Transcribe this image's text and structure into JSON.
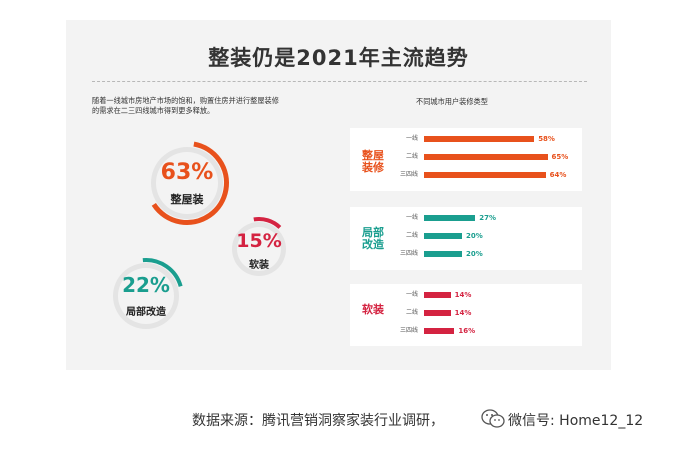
{
  "title": "整装仍是2021年主流趋势",
  "intro": {
    "line1": "随着一线城市房地产市场的饱和，购置住房并进行整屋装修",
    "line2": "的需求在二三四线城市得到更多释放。"
  },
  "donuts": [
    {
      "pct": "63%",
      "label": "整屋装",
      "value": 63,
      "color": "#e8511c"
    },
    {
      "pct": "15%",
      "label": "软装",
      "value": 15,
      "color": "#d42341"
    },
    {
      "pct": "22%",
      "label": "局部改造",
      "value": 22,
      "color": "#1a9e8f"
    }
  ],
  "chart_data": {
    "type": "bar",
    "title": "不同城市用户装修类型",
    "categories": [
      "一线",
      "二线",
      "三四线"
    ],
    "xlim": [
      0,
      100
    ],
    "series": [
      {
        "name": "整屋装修",
        "values": [
          58,
          65,
          64
        ],
        "labels": [
          "58%",
          "65%",
          "64%"
        ],
        "color": "#e8511c"
      },
      {
        "name": "局部改造",
        "values": [
          27,
          20,
          20
        ],
        "labels": [
          "27%",
          "20%",
          "20%"
        ],
        "color": "#1a9e8f"
      },
      {
        "name": "软装",
        "values": [
          14,
          14,
          16
        ],
        "labels": [
          "14%",
          "14%",
          "16%"
        ],
        "color": "#d42341"
      }
    ]
  },
  "footer": {
    "source": "数据来源：腾讯营销洞察家装行业调研，",
    "watermark": "微信号: Home12_12"
  },
  "icons": {
    "wechat": "wechat-icon"
  }
}
